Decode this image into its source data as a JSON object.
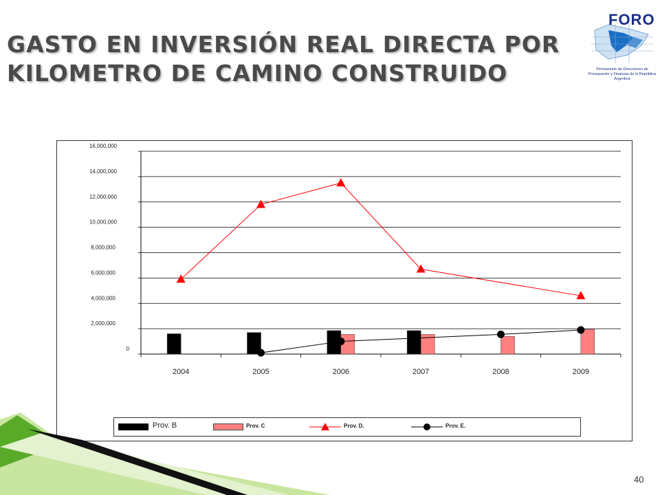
{
  "slide": {
    "title": "GASTO EN INVERSIÓN REAL DIRECTA POR KILOMETRO DE CAMINO CONSTRUIDO",
    "page_number": "40",
    "logo_word": "FORO",
    "logo_subtitle": "Permanente de Direcciones de Presupuesto y Finanzas de la República Argentina"
  },
  "chart_data": {
    "type": "bar",
    "title": "",
    "xlabel": "",
    "ylabel": "",
    "categories": [
      "2004",
      "2005",
      "2006",
      "2007",
      "2008",
      "2009"
    ],
    "ylim": [
      0,
      16000000
    ],
    "yticks": [
      0,
      2000000,
      4000000,
      6000000,
      8000000,
      10000000,
      12000000,
      14000000,
      16000000
    ],
    "ytick_labels": [
      "0",
      "2,000,000",
      "4,000,000",
      "6,000,000",
      "8,000,000",
      "10,000,000",
      "12,000,000",
      "14,000,000",
      "16,000,000"
    ],
    "grid": true,
    "legend_position": "bottom",
    "series": [
      {
        "name": "Prov. B",
        "kind": "bar",
        "color": "#000000",
        "values": [
          1600000,
          1700000,
          1850000,
          1850000,
          null,
          null
        ]
      },
      {
        "name": "Prov. C",
        "kind": "bar",
        "color": "#ff8080",
        "values": [
          null,
          null,
          1550000,
          1550000,
          1400000,
          1950000
        ]
      },
      {
        "name": "Prov. D.",
        "kind": "line",
        "marker": "triangle",
        "color": "#ff0000",
        "values": [
          5900000,
          11800000,
          13500000,
          6700000,
          null,
          4600000
        ]
      },
      {
        "name": "Prov. E.",
        "kind": "line",
        "marker": "circle",
        "color": "#000000",
        "values": [
          null,
          100000,
          1000000,
          null,
          1550000,
          1900000
        ]
      }
    ]
  }
}
